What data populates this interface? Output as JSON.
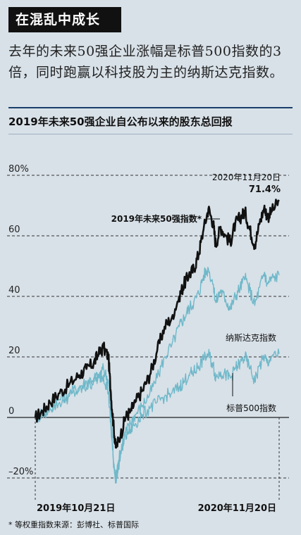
{
  "header": {
    "title": "在混乱中成长",
    "lead": "去年的未来50强企业涨幅是标普500指数的3倍，同时跑赢以科技股为主的纳斯达克指数。",
    "subtitle": "2019年未来50强企业自公布以来的股东总回报",
    "footnote": "* 等权重指数来源：彭博社、标普国际"
  },
  "chart_data": {
    "type": "line",
    "title": "2019年未来50强企业自公布以来的股东总回报",
    "xlabel": "",
    "ylabel": "",
    "x_start": "2019年10月21日",
    "x_end": "2020年11月20日",
    "y_ticks": [
      "80%",
      "60",
      "40",
      "20",
      "0",
      "–20%"
    ],
    "ylim": [
      -25,
      82
    ],
    "grid": true,
    "end_date_label": "2020年11月20日",
    "end_value_label": "71.4%",
    "series": [
      {
        "name": "2019年未来50强指数*",
        "color": "#111111",
        "x": [
          0,
          0.03,
          0.06,
          0.1,
          0.14,
          0.18,
          0.21,
          0.24,
          0.26,
          0.28,
          0.3,
          0.31,
          0.32,
          0.33,
          0.35,
          0.37,
          0.39,
          0.41,
          0.44,
          0.47,
          0.5,
          0.53,
          0.56,
          0.59,
          0.61,
          0.63,
          0.65,
          0.67,
          0.69,
          0.71,
          0.73,
          0.74,
          0.76,
          0.78,
          0.8,
          0.82,
          0.84,
          0.86,
          0.88,
          0.9,
          0.92,
          0.94,
          0.95,
          0.97,
          1.0
        ],
        "values": [
          0,
          2,
          5,
          8,
          11,
          14,
          16,
          18,
          21,
          23,
          20,
          8,
          -2,
          -10,
          -6,
          0,
          2,
          5,
          9,
          14,
          22,
          30,
          33,
          40,
          44,
          47,
          49,
          54,
          62,
          69,
          64,
          57,
          63,
          60,
          58,
          64,
          66,
          68,
          62,
          57,
          64,
          70,
          66,
          68,
          71.4
        ]
      },
      {
        "name": "纳斯达克指数",
        "color": "#6fb8c9",
        "x": [
          0,
          0.03,
          0.06,
          0.1,
          0.14,
          0.18,
          0.21,
          0.24,
          0.26,
          0.28,
          0.3,
          0.31,
          0.32,
          0.33,
          0.35,
          0.37,
          0.39,
          0.41,
          0.44,
          0.47,
          0.5,
          0.53,
          0.56,
          0.59,
          0.61,
          0.63,
          0.65,
          0.67,
          0.69,
          0.71,
          0.73,
          0.74,
          0.76,
          0.78,
          0.8,
          0.82,
          0.84,
          0.86,
          0.88,
          0.9,
          0.92,
          0.94,
          0.95,
          0.97,
          1.0
        ],
        "values": [
          0,
          1,
          3,
          6,
          8,
          10,
          12,
          13,
          14,
          16,
          12,
          2,
          -14,
          -21,
          -12,
          -5,
          -2,
          1,
          4,
          8,
          13,
          20,
          24,
          30,
          33,
          36,
          38,
          41,
          47,
          49,
          44,
          38,
          42,
          39,
          36,
          40,
          43,
          46,
          42,
          37,
          43,
          48,
          44,
          46,
          47
        ]
      },
      {
        "name": "标普500指数",
        "color": "#6fb8c9",
        "x": [
          0,
          0.03,
          0.06,
          0.1,
          0.14,
          0.18,
          0.21,
          0.24,
          0.26,
          0.28,
          0.3,
          0.31,
          0.32,
          0.33,
          0.35,
          0.37,
          0.39,
          0.41,
          0.44,
          0.47,
          0.5,
          0.53,
          0.56,
          0.59,
          0.61,
          0.63,
          0.65,
          0.67,
          0.69,
          0.71,
          0.73,
          0.74,
          0.76,
          0.78,
          0.8,
          0.82,
          0.84,
          0.86,
          0.88,
          0.9,
          0.92,
          0.94,
          0.95,
          0.97,
          1.0
        ],
        "values": [
          0,
          1,
          3,
          5,
          7,
          9,
          10,
          12,
          13,
          14,
          8,
          -3,
          -14,
          -20,
          -11,
          -6,
          -4,
          -2,
          1,
          3,
          5,
          7,
          8,
          10,
          12,
          14,
          15,
          17,
          19,
          21,
          17,
          13,
          15,
          14,
          13,
          16,
          18,
          20,
          16,
          12,
          17,
          20,
          18,
          20,
          21
        ]
      }
    ],
    "labels": {
      "leader": "2019年未来50强指数*",
      "nasdaq": "纳斯达克指数",
      "sp500": "标普500指数"
    }
  }
}
